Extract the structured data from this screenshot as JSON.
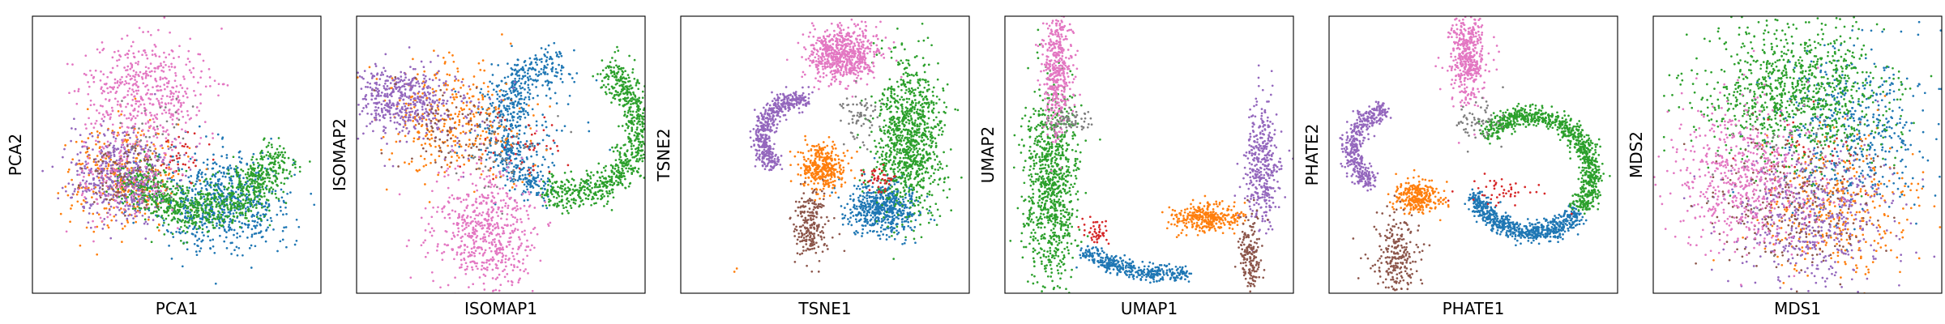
{
  "figure": {
    "panels": [
      "PCA",
      "ISOMAP",
      "TSNE",
      "UMAP",
      "PHATE",
      "MDS"
    ]
  },
  "chart_data": [
    {
      "type": "scatter",
      "method": "PCA",
      "xlabel": "PCA1",
      "ylabel": "PCA2",
      "ticks": false,
      "grid": false,
      "legend": "none",
      "xlim": [
        0,
        100
      ],
      "ylim": [
        0,
        100
      ],
      "series": [
        {
          "color": "#1f77b4",
          "clusters": [
            {
              "n": 650,
              "cx": 66,
              "cy": 33,
              "sx": 12,
              "sy": 9
            }
          ]
        },
        {
          "color": "#ff7f0e",
          "clusters": [
            {
              "n": 320,
              "cx": 32,
              "cy": 42,
              "sx": 10,
              "sy": 10
            }
          ]
        },
        {
          "color": "#2ca02c",
          "clusters": [
            {
              "n": 950,
              "type": "arc",
              "cx": 58,
              "cy": 58,
              "r": 28,
              "a0": 210,
              "a1": 345,
              "spread": 7
            }
          ]
        },
        {
          "color": "#d62728",
          "clusters": [
            {
              "n": 35,
              "cx": 52,
              "cy": 48,
              "sx": 5,
              "sy": 4
            }
          ]
        },
        {
          "color": "#9467bd",
          "clusters": [
            {
              "n": 450,
              "cx": 30,
              "cy": 42,
              "sx": 9,
              "sy": 8
            }
          ]
        },
        {
          "color": "#8c564b",
          "clusters": [
            {
              "n": 100,
              "cx": 33,
              "cy": 43,
              "sx": 7,
              "sy": 6
            }
          ]
        },
        {
          "color": "#e377c2",
          "clusters": [
            {
              "n": 480,
              "cx": 40,
              "cy": 73,
              "sx": 10,
              "sy": 10
            },
            {
              "n": 160,
              "cx": 33,
              "cy": 43,
              "sx": 9,
              "sy": 9
            }
          ]
        },
        {
          "color": "#7f7f7f",
          "clusters": [
            {
              "n": 30,
              "cx": 44,
              "cy": 60,
              "sx": 5,
              "sy": 5
            }
          ]
        }
      ]
    },
    {
      "type": "scatter",
      "method": "ISOMAP",
      "xlabel": "ISOMAP1",
      "ylabel": "ISOMAP2",
      "ticks": false,
      "grid": false,
      "legend": "none",
      "xlim": [
        0,
        100
      ],
      "ylim": [
        0,
        100
      ],
      "series": [
        {
          "color": "#1f77b4",
          "clusters": [
            {
              "n": 520,
              "type": "arc",
              "cx": 74,
              "cy": 60,
              "r": 24,
              "a0": 100,
              "a1": 250,
              "spread": 6
            },
            {
              "n": 160,
              "cx": 58,
              "cy": 62,
              "sx": 10,
              "sy": 12
            }
          ]
        },
        {
          "color": "#ff7f0e",
          "clusters": [
            {
              "n": 280,
              "cx": 30,
              "cy": 64,
              "sx": 10,
              "sy": 10
            },
            {
              "n": 60,
              "cx": 50,
              "cy": 55,
              "sx": 10,
              "sy": 10
            }
          ]
        },
        {
          "color": "#2ca02c",
          "clusters": [
            {
              "n": 800,
              "type": "arc",
              "cx": 74,
              "cy": 60,
              "r": 24,
              "a0": -110,
              "a1": 60,
              "spread": 5
            }
          ]
        },
        {
          "color": "#d62728",
          "clusters": [
            {
              "n": 45,
              "cx": 58,
              "cy": 52,
              "sx": 8,
              "sy": 6
            }
          ]
        },
        {
          "color": "#9467bd",
          "clusters": [
            {
              "n": 420,
              "cx": 16,
              "cy": 70,
              "sx": 7,
              "sy": 6
            },
            {
              "n": 80,
              "cx": 32,
              "cy": 62,
              "sx": 10,
              "sy": 8
            }
          ]
        },
        {
          "color": "#8c564b",
          "clusters": [
            {
              "n": 90,
              "cx": 32,
              "cy": 60,
              "sx": 9,
              "sy": 8
            }
          ]
        },
        {
          "color": "#e377c2",
          "clusters": [
            {
              "n": 600,
              "cx": 44,
              "cy": 22,
              "sx": 9,
              "sy": 11
            }
          ]
        },
        {
          "color": "#7f7f7f",
          "clusters": [
            {
              "n": 40,
              "cx": 52,
              "cy": 50,
              "sx": 8,
              "sy": 8
            }
          ]
        }
      ]
    },
    {
      "type": "scatter",
      "method": "TSNE",
      "xlabel": "TSNE1",
      "ylabel": "TSNE2",
      "ticks": false,
      "grid": false,
      "legend": "none",
      "xlim": [
        0,
        100
      ],
      "ylim": [
        0,
        100
      ],
      "series": [
        {
          "color": "#1f77b4",
          "clusters": [
            {
              "n": 550,
              "cx": 70,
              "cy": 30,
              "sx": 6,
              "sy": 5
            }
          ]
        },
        {
          "color": "#ff7f0e",
          "clusters": [
            {
              "n": 360,
              "cx": 49,
              "cy": 45,
              "sx": 4,
              "sy": 4
            },
            {
              "n": 2,
              "cx": 18,
              "cy": 8,
              "sx": 1,
              "sy": 1
            }
          ]
        },
        {
          "color": "#2ca02c",
          "clusters": [
            {
              "n": 1000,
              "cx": 79,
              "cy": 55,
              "sx": 6,
              "sy": 14
            }
          ]
        },
        {
          "color": "#d62728",
          "clusters": [
            {
              "n": 45,
              "cx": 68,
              "cy": 41,
              "sx": 3,
              "sy": 2
            }
          ]
        },
        {
          "color": "#9467bd",
          "clusters": [
            {
              "n": 500,
              "type": "arc",
              "cx": 42,
              "cy": 56,
              "r": 14,
              "a0": 80,
              "a1": 230,
              "spread": 3
            }
          ]
        },
        {
          "color": "#8c564b",
          "clusters": [
            {
              "n": 220,
              "cx": 45,
              "cy": 25,
              "sx": 3,
              "sy": 6
            }
          ]
        },
        {
          "color": "#e377c2",
          "clusters": [
            {
              "n": 650,
              "cx": 56,
              "cy": 86,
              "sx": 6,
              "sy": 5
            }
          ]
        },
        {
          "color": "#7f7f7f",
          "clusters": [
            {
              "n": 70,
              "cx": 62,
              "cy": 64,
              "sx": 3,
              "sy": 5
            }
          ]
        }
      ]
    },
    {
      "type": "scatter",
      "method": "UMAP",
      "xlabel": "UMAP1",
      "ylabel": "UMAP2",
      "ticks": false,
      "grid": false,
      "legend": "none",
      "xlim": [
        0,
        100
      ],
      "ylim": [
        0,
        100
      ],
      "series": [
        {
          "color": "#1f77b4",
          "clusters": [
            {
              "n": 380,
              "type": "arc",
              "cx": 55,
              "cy": 55,
              "r": 48,
              "a0": 235,
              "a1": 280,
              "spread": 2.5
            }
          ]
        },
        {
          "color": "#ff7f0e",
          "clusters": [
            {
              "n": 320,
              "cx": 70,
              "cy": 27,
              "sx": 6,
              "sy": 2.5
            }
          ]
        },
        {
          "color": "#2ca02c",
          "clusters": [
            {
              "n": 900,
              "cx": 16,
              "cy": 38,
              "sx": 4.5,
              "sy": 18
            }
          ]
        },
        {
          "color": "#d62728",
          "clusters": [
            {
              "n": 45,
              "cx": 31,
              "cy": 22,
              "sx": 2.5,
              "sy": 2.5
            }
          ]
        },
        {
          "color": "#9467bd",
          "clusters": [
            {
              "n": 380,
              "cx": 89,
              "cy": 45,
              "sx": 3,
              "sy": 12
            }
          ]
        },
        {
          "color": "#8c564b",
          "clusters": [
            {
              "n": 180,
              "cx": 85,
              "cy": 13,
              "sx": 2,
              "sy": 7
            }
          ]
        },
        {
          "color": "#e377c2",
          "clusters": [
            {
              "n": 450,
              "cx": 18,
              "cy": 80,
              "sx": 2.5,
              "sy": 12
            }
          ]
        },
        {
          "color": "#7f7f7f",
          "clusters": [
            {
              "n": 70,
              "cx": 22,
              "cy": 62,
              "sx": 4,
              "sy": 2
            }
          ]
        }
      ]
    },
    {
      "type": "scatter",
      "method": "PHATE",
      "xlabel": "PHATE1",
      "ylabel": "PHATE2",
      "ticks": false,
      "grid": false,
      "legend": "none",
      "xlim": [
        0,
        100
      ],
      "ylim": [
        0,
        100
      ],
      "series": [
        {
          "color": "#1f77b4",
          "clusters": [
            {
              "n": 650,
              "type": "arc",
              "cx": 70,
              "cy": 43,
              "r": 21,
              "a0": 200,
              "a1": 320,
              "spread": 3
            }
          ]
        },
        {
          "color": "#ff7f0e",
          "clusters": [
            {
              "n": 280,
              "cx": 31,
              "cy": 35,
              "sx": 4,
              "sy": 3
            }
          ]
        },
        {
          "color": "#2ca02c",
          "clusters": [
            {
              "n": 850,
              "type": "arc",
              "cx": 70,
              "cy": 43,
              "r": 21,
              "a0": -40,
              "a1": 140,
              "spread": 3
            }
          ]
        },
        {
          "color": "#d62728",
          "clusters": [
            {
              "n": 45,
              "cx": 60,
              "cy": 36,
              "sx": 8,
              "sy": 3
            }
          ]
        },
        {
          "color": "#9467bd",
          "clusters": [
            {
              "n": 420,
              "type": "arc",
              "cx": 22,
              "cy": 52,
              "r": 14,
              "a0": 100,
              "a1": 240,
              "spread": 3
            }
          ]
        },
        {
          "color": "#8c564b",
          "clusters": [
            {
              "n": 240,
              "cx": 23,
              "cy": 14,
              "sx": 4,
              "sy": 8
            }
          ]
        },
        {
          "color": "#e377c2",
          "clusters": [
            {
              "n": 450,
              "cx": 48,
              "cy": 85,
              "sx": 3,
              "sy": 8
            }
          ]
        },
        {
          "color": "#7f7f7f",
          "clusters": [
            {
              "n": 60,
              "cx": 51,
              "cy": 62,
              "sx": 4,
              "sy": 4
            }
          ]
        }
      ]
    },
    {
      "type": "scatter",
      "method": "MDS",
      "xlabel": "MDS1",
      "ylabel": "MDS2",
      "ticks": false,
      "grid": false,
      "legend": "none",
      "xlim": [
        0,
        100
      ],
      "ylim": [
        0,
        100
      ],
      "series": [
        {
          "color": "#1f77b4",
          "clusters": [
            {
              "n": 450,
              "cx": 70,
              "cy": 60,
              "sx": 13,
              "sy": 15
            }
          ]
        },
        {
          "color": "#ff7f0e",
          "clusters": [
            {
              "n": 350,
              "cx": 63,
              "cy": 33,
              "sx": 13,
              "sy": 13
            }
          ]
        },
        {
          "color": "#2ca02c",
          "clusters": [
            {
              "n": 1000,
              "cx": 50,
              "cy": 72,
              "sx": 16,
              "sy": 12
            }
          ]
        },
        {
          "color": "#d62728",
          "clusters": [
            {
              "n": 40,
              "cx": 52,
              "cy": 48,
              "sx": 10,
              "sy": 10
            }
          ]
        },
        {
          "color": "#9467bd",
          "clusters": [
            {
              "n": 500,
              "cx": 55,
              "cy": 28,
              "sx": 14,
              "sy": 13
            }
          ]
        },
        {
          "color": "#8c564b",
          "clusters": [
            {
              "n": 250,
              "cx": 47,
              "cy": 32,
              "sx": 14,
              "sy": 13
            }
          ]
        },
        {
          "color": "#e377c2",
          "clusters": [
            {
              "n": 600,
              "cx": 32,
              "cy": 42,
              "sx": 13,
              "sy": 13
            }
          ]
        },
        {
          "color": "#7f7f7f",
          "clusters": [
            {
              "n": 40,
              "cx": 48,
              "cy": 50,
              "sx": 12,
              "sy": 12
            }
          ]
        }
      ]
    }
  ]
}
